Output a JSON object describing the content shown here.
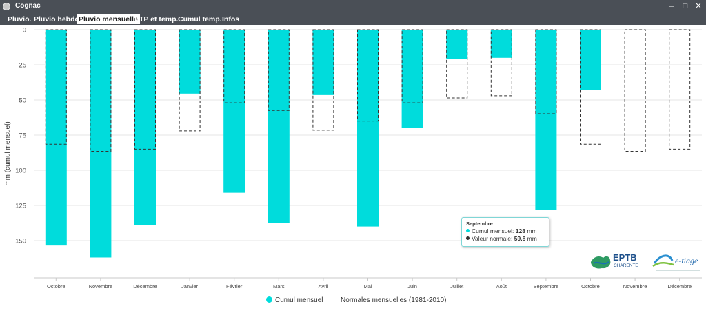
{
  "window": {
    "title": "Cognac"
  },
  "tabs": [
    {
      "label": "Pluvio."
    },
    {
      "label": "Pluvio hebdo"
    },
    {
      "label": "Pluvio mensuelle",
      "active": true
    },
    {
      "label": "ETP et temp."
    },
    {
      "label": "Cumul temp."
    },
    {
      "label": "Infos"
    }
  ],
  "chart_data": {
    "type": "bar",
    "ylabel": "mm (cumul mensuel)",
    "ylim": [
      0,
      175
    ],
    "y_ticks": [
      0,
      25,
      50,
      75,
      100,
      125,
      150
    ],
    "y_axis_reversed": true,
    "grid": true,
    "legend_position": "bottom",
    "categories": [
      "Octobre",
      "Novembre",
      "Décembre",
      "Janvier",
      "Février",
      "Mars",
      "Avril",
      "Mai",
      "Juin",
      "Juillet",
      "Août",
      "Septembre",
      "Octobre",
      "Novembre",
      "Décembre"
    ],
    "series": [
      {
        "name": "Cumul mensuel",
        "color": "#00dcdc",
        "values": [
          153.5,
          162,
          139,
          45.5,
          116,
          137.5,
          46.5,
          140,
          70,
          21,
          20,
          128,
          43,
          null,
          null
        ]
      },
      {
        "name": "Normales mensuelles (1981-2010)",
        "style": "dashed-outline",
        "values": [
          81.5,
          86.5,
          85,
          72,
          52,
          57.5,
          71.5,
          65,
          52,
          48.5,
          47,
          59.8,
          81.5,
          86.5,
          85
        ]
      }
    ]
  },
  "tooltip": {
    "title": "Septembre",
    "rows": [
      {
        "label": "Cumul mensuel:",
        "value": "128",
        "unit": "mm",
        "color": "#00dcdc"
      },
      {
        "label": "Valeur normale:",
        "value": "59.8",
        "unit": "mm",
        "color": "#333333"
      }
    ]
  },
  "logos": {
    "eptb": {
      "line1": "EPTB",
      "line2": "CHARENTE"
    },
    "etiage": {
      "text": "e-tiage"
    }
  }
}
